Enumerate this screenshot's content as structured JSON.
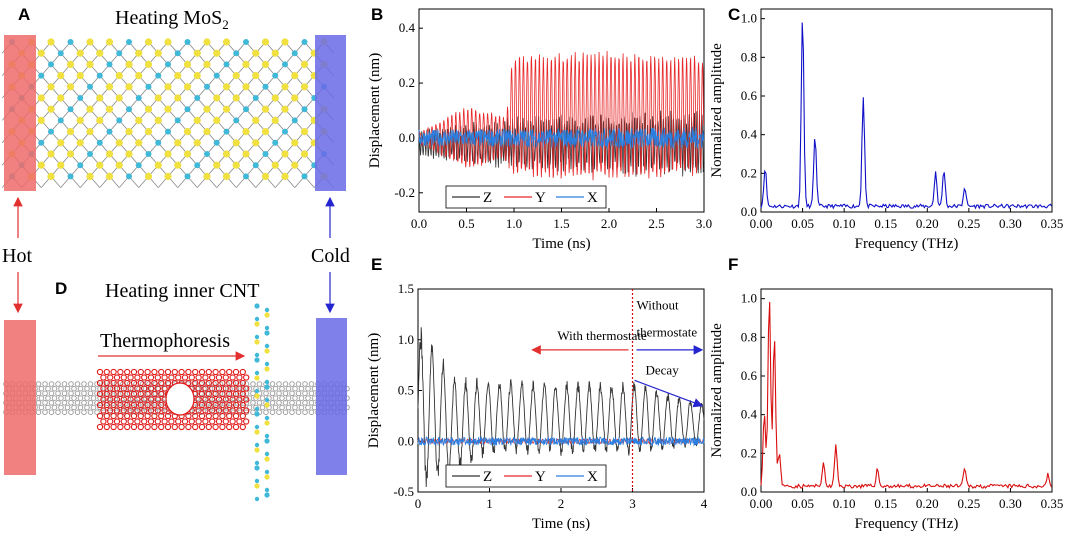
{
  "panels": {
    "A": {
      "label": "A",
      "title": "Heating MoS",
      "title_sub": "2"
    },
    "B": {
      "label": "B"
    },
    "C": {
      "label": "C"
    },
    "D": {
      "label": "D",
      "title": "Heating inner CNT",
      "arrow_label": "Thermophoresis"
    },
    "E": {
      "label": "E",
      "left_note": "With thermostate",
      "right_note_1": "Without",
      "right_note_2": "thermostate",
      "decay": "Decay"
    },
    "F": {
      "label": "F"
    }
  },
  "side_labels": {
    "hot": "Hot",
    "cold": "Cold"
  },
  "colors": {
    "hot": "#ee6b6b",
    "cold": "#6a6ae6",
    "z": "#333333",
    "y": "#e8282a",
    "x": "#2a7fe0",
    "c_line": "#1010c8",
    "f_line": "#d80e0e",
    "mo": "#f0e040",
    "s": "#40b8d8"
  },
  "chart_data": [
    {
      "id": "B",
      "type": "line",
      "xlabel": "Time (ns)",
      "ylabel": "Displacement (nm)",
      "xlim": [
        0,
        3.0
      ],
      "ylim": [
        -0.27,
        0.47
      ],
      "xticks": [
        "0.0",
        "0.5",
        "1.0",
        "1.5",
        "2.0",
        "2.5",
        "3.0"
      ],
      "yticks": [
        "-0.2",
        "0.0",
        "0.2",
        "0.4"
      ],
      "legend": [
        "Z",
        "Y",
        "X"
      ],
      "legend_position": "bottom-left",
      "series": [
        {
          "name": "Z",
          "amplitude_envelope": [
            [
              0,
              0.05
            ],
            [
              0.5,
              0.08
            ],
            [
              1.0,
              0.1
            ],
            [
              2.0,
              0.12
            ],
            [
              3.0,
              0.13
            ]
          ],
          "mean": -0.02
        },
        {
          "name": "Y",
          "amplitude_envelope": [
            [
              0,
              0.02
            ],
            [
              0.5,
              0.12
            ],
            [
              0.9,
              0.08
            ],
            [
              1.0,
              0.23
            ],
            [
              2.0,
              0.24
            ],
            [
              3.0,
              0.22
            ]
          ],
          "mean": 0.08
        },
        {
          "name": "X",
          "amplitude_envelope": [
            [
              0,
              0.03
            ],
            [
              3.0,
              0.04
            ]
          ],
          "mean": 0.0
        }
      ]
    },
    {
      "id": "C",
      "type": "line",
      "xlabel": "Frequency (THz)",
      "ylabel": "Normalized amplitude",
      "xlim": [
        0,
        0.35
      ],
      "ylim": [
        0,
        1.05
      ],
      "xticks": [
        "0.00",
        "0.05",
        "0.10",
        "0.15",
        "0.20",
        "0.25",
        "0.30",
        "0.35"
      ],
      "yticks": [
        "0.0",
        "0.2",
        "0.4",
        "0.6",
        "0.8",
        "1.0"
      ],
      "peaks": [
        [
          0.005,
          0.2
        ],
        [
          0.05,
          1.0
        ],
        [
          0.065,
          0.37
        ],
        [
          0.123,
          0.57
        ],
        [
          0.21,
          0.18
        ],
        [
          0.22,
          0.19
        ],
        [
          0.245,
          0.1
        ]
      ]
    },
    {
      "id": "E",
      "type": "line",
      "xlabel": "Time (ns)",
      "ylabel": "Displacement (nm)",
      "xlim": [
        0,
        4
      ],
      "ylim": [
        -0.5,
        1.5
      ],
      "xticks": [
        "0",
        "1",
        "2",
        "3",
        "4"
      ],
      "yticks": [
        "-0.5",
        "0.0",
        "0.5",
        "1.0",
        "1.5"
      ],
      "legend": [
        "Z",
        "Y",
        "X"
      ],
      "legend_position": "bottom-left",
      "thermostat_off_time": 3,
      "series": [
        {
          "name": "Z",
          "peak_values": [
            [
              0.1,
              1.15
            ],
            [
              0.5,
              0.65
            ],
            [
              1.0,
              0.62
            ],
            [
              2.0,
              0.6
            ],
            [
              3.0,
              0.6
            ],
            [
              4.0,
              0.38
            ]
          ],
          "trough_values": [
            [
              0.1,
              -0.5
            ],
            [
              1.0,
              -0.15
            ],
            [
              3.0,
              -0.15
            ],
            [
              4.0,
              -0.05
            ]
          ]
        },
        {
          "name": "Y",
          "amplitude": 0.02
        },
        {
          "name": "X",
          "amplitude": 0.04
        }
      ]
    },
    {
      "id": "F",
      "type": "line",
      "xlabel": "Frequency (THz)",
      "ylabel": "Normalized amplitude",
      "xlim": [
        0,
        0.35
      ],
      "ylim": [
        0,
        1.05
      ],
      "xticks": [
        "0.00",
        "0.05",
        "0.10",
        "0.15",
        "0.20",
        "0.25",
        "0.30",
        "0.35"
      ],
      "yticks": [
        "0.0",
        "0.2",
        "0.4",
        "0.6",
        "0.8",
        "1.0"
      ],
      "peaks": [
        [
          0.004,
          0.38
        ],
        [
          0.01,
          1.0
        ],
        [
          0.016,
          0.78
        ],
        [
          0.022,
          0.18
        ],
        [
          0.075,
          0.12
        ],
        [
          0.09,
          0.21
        ],
        [
          0.14,
          0.09
        ],
        [
          0.245,
          0.09
        ],
        [
          0.345,
          0.06
        ]
      ]
    }
  ]
}
